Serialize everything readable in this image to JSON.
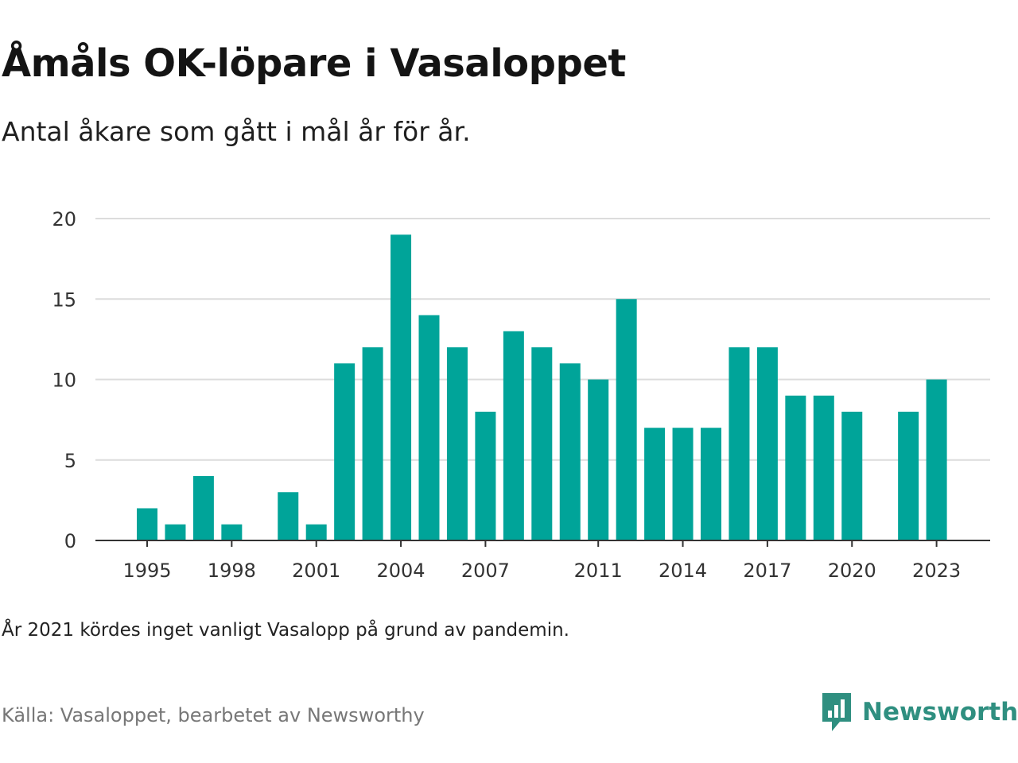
{
  "title": "Åmåls OK-löpare i Vasaloppet",
  "subtitle": "Antal åkare som gått i mål år för år.",
  "note": "År 2021 kördes inget vanligt Vasalopp på grund av pandemin.",
  "source": "Källa: Vasaloppet, bearbetet av Newsworthy",
  "brand": {
    "name": "Newsworthy",
    "icon": "newsworthy-logo-icon",
    "color": "#2f8f80"
  },
  "chart_data": {
    "type": "bar",
    "categories": [
      1995,
      1996,
      1997,
      1998,
      1999,
      2000,
      2001,
      2002,
      2003,
      2004,
      2005,
      2006,
      2007,
      2008,
      2009,
      2010,
      2011,
      2012,
      2013,
      2014,
      2015,
      2016,
      2017,
      2018,
      2019,
      2020,
      2021,
      2022,
      2023
    ],
    "values": [
      2,
      1,
      4,
      1,
      0,
      3,
      1,
      11,
      12,
      19,
      14,
      12,
      8,
      13,
      12,
      11,
      10,
      15,
      7,
      7,
      7,
      12,
      12,
      9,
      9,
      8,
      0,
      8,
      10
    ],
    "x_tick_labels": [
      "1995",
      "1998",
      "2001",
      "2004",
      "2007",
      "2011",
      "2014",
      "2017",
      "2020",
      "2023"
    ],
    "y_ticks": [
      "0",
      "5",
      "10",
      "15",
      "20"
    ],
    "ylim": [
      0,
      20
    ],
    "xlabel": "",
    "ylabel": "",
    "bar_color": "#00a499",
    "grid": true
  }
}
